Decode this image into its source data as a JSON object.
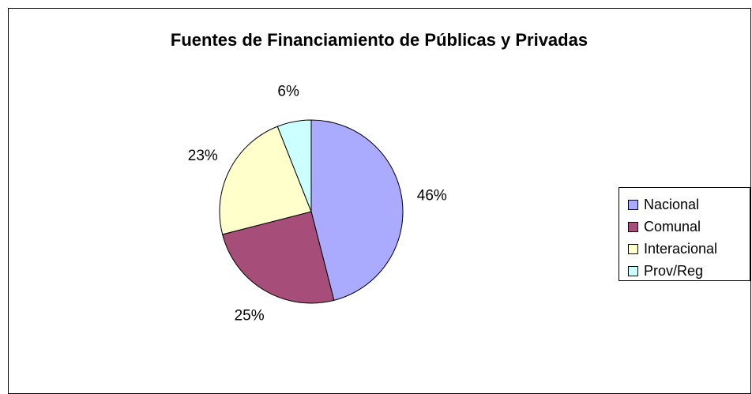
{
  "chart_data": {
    "type": "pie",
    "title": "Fuentes de Financiamiento de Públicas y Privadas",
    "categories": [
      "Nacional",
      "Comunal",
      "Interacional",
      "Prov/Reg"
    ],
    "values": [
      46,
      25,
      23,
      6
    ],
    "value_labels": [
      "46%",
      "25%",
      "23%",
      "6%"
    ],
    "colors": [
      "#aaaaff",
      "#a64d79",
      "#ffffcc",
      "#ccffff"
    ],
    "legend": "right"
  }
}
